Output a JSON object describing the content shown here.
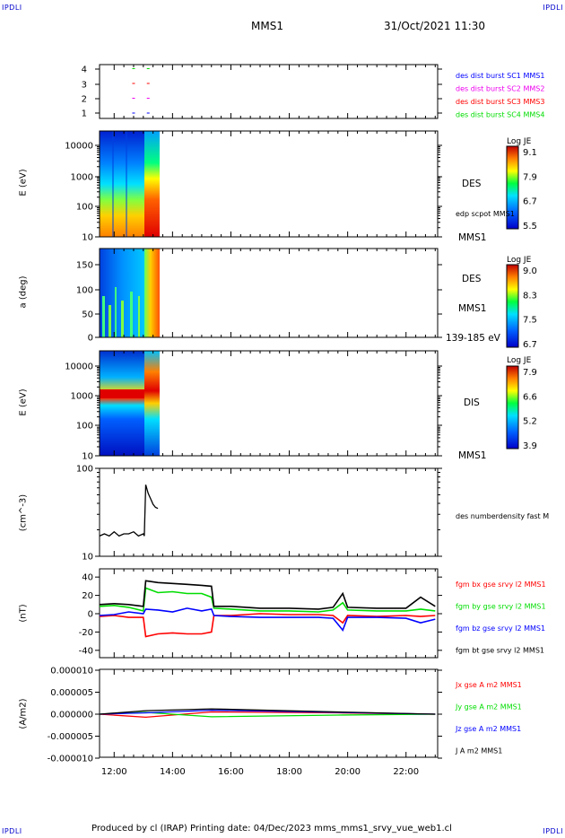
{
  "header": {
    "corner_tl": "IPDLI",
    "corner_tr": "IPDLI",
    "corner_bl": "IPDLI",
    "corner_br": "IPDLI",
    "spacecraft": "MMS1",
    "datetime": "31/Oct/2021 11:30"
  },
  "footer": {
    "text": "Produced by cl (IRAP)   Printing date: 04/Dec/2023   mms_mms1_srvy_vue_web1.cl"
  },
  "colors": {
    "red": "#ff0000",
    "green": "#00dd00",
    "blue": "#0000ff",
    "magenta": "#ee00ee",
    "black": "#000000"
  },
  "chart_data": [
    {
      "type": "scatter",
      "panel": "burst",
      "y_ticks": [
        "4",
        "3",
        "2",
        "1"
      ],
      "legend": [
        {
          "name": "des dist burst SC1 MMS1",
          "color": "#0000ff"
        },
        {
          "name": "des dist burst SC2 MMS2",
          "color": "#ee00ee"
        },
        {
          "name": "des dist burst SC3 MMS3",
          "color": "#ff0000"
        },
        {
          "name": "des dist burst SC4 MMS4",
          "color": "#00dd00"
        }
      ],
      "points": [
        {
          "x": "12:40",
          "y": 4,
          "color": "#00dd00"
        },
        {
          "x": "13:10",
          "y": 4,
          "color": "#00dd00"
        },
        {
          "x": "12:40",
          "y": 3,
          "color": "#ff0000"
        },
        {
          "x": "13:10",
          "y": 3,
          "color": "#ff0000"
        },
        {
          "x": "12:40",
          "y": 2,
          "color": "#ee00ee"
        },
        {
          "x": "13:10",
          "y": 2,
          "color": "#ee00ee"
        },
        {
          "x": "12:40",
          "y": 1,
          "color": "#0000ff"
        },
        {
          "x": "13:10",
          "y": 1,
          "color": "#0000ff"
        }
      ]
    },
    {
      "type": "heatmap",
      "panel": "des-energy",
      "ylabel": "E (eV)",
      "y_scale": "log",
      "y_ticks": [
        "10000",
        "1000",
        "100",
        "10"
      ],
      "right_labels": [
        "DES",
        "edp scpot MMS1",
        "MMS1"
      ],
      "colorbar": {
        "title": "Log JE",
        "ticks": [
          "9.1",
          "7.9",
          "6.7",
          "5.5"
        ]
      },
      "data_extent_x": [
        "11:30",
        "13:35"
      ]
    },
    {
      "type": "heatmap",
      "panel": "des-pitch",
      "ylabel": "a (deg)",
      "y_ticks": [
        "150",
        "100",
        "50",
        "0"
      ],
      "right_labels": [
        "DES",
        "MMS1",
        "139-185 eV"
      ],
      "colorbar": {
        "title": "Log JE",
        "ticks": [
          "9.0",
          "8.3",
          "7.5",
          "6.7"
        ]
      },
      "data_extent_x": [
        "11:30",
        "13:35"
      ]
    },
    {
      "type": "heatmap",
      "panel": "dis-energy",
      "ylabel": "E (eV)",
      "y_scale": "log",
      "y_ticks": [
        "10000",
        "1000",
        "100",
        "10"
      ],
      "right_labels": [
        "DIS",
        "MMS1"
      ],
      "colorbar": {
        "title": "Log JE",
        "ticks": [
          "7.9",
          "6.6",
          "5.2",
          "3.9"
        ]
      },
      "data_extent_x": [
        "11:30",
        "13:35"
      ]
    },
    {
      "type": "line",
      "panel": "density",
      "ylabel": "(cm^-3)",
      "y_scale": "log",
      "y_ticks": [
        "100",
        "10"
      ],
      "series": [
        {
          "name": "des numberdensity fast M",
          "color": "#000000",
          "x": [
            "11:30",
            "11:40",
            "11:50",
            "12:00",
            "12:10",
            "12:20",
            "12:30",
            "12:40",
            "12:50",
            "13:00",
            "13:02",
            "13:05",
            "13:10",
            "13:15",
            "13:20",
            "13:25",
            "13:30"
          ],
          "y": [
            17,
            18,
            17,
            19,
            17,
            18,
            18,
            19,
            17,
            18,
            17,
            65,
            52,
            45,
            39,
            36,
            35
          ]
        }
      ]
    },
    {
      "type": "line",
      "panel": "magnetic-field",
      "ylabel": "(nT)",
      "y_ticks": [
        "40",
        "20",
        "0",
        "-20",
        "-40"
      ],
      "ylim": [
        -48,
        48
      ],
      "series": [
        {
          "name": "fgm bx gse srvy l2 MMS1",
          "color": "#ff0000",
          "x": [
            "11:30",
            "12:00",
            "12:30",
            "13:00",
            "13:05",
            "13:30",
            "14:00",
            "14:30",
            "15:00",
            "15:20",
            "15:25",
            "16:00",
            "17:00",
            "18:00",
            "19:00",
            "19:30",
            "19:50",
            "20:00",
            "21:00",
            "22:00",
            "22:30",
            "23:00"
          ],
          "y": [
            -3,
            -2,
            -4,
            -4,
            -25,
            -22,
            -21,
            -22,
            -22,
            -20,
            -2,
            -2,
            0,
            -1,
            -1,
            -2,
            -10,
            -2,
            -3,
            -2,
            -3,
            -2
          ]
        },
        {
          "name": "fgm by gse srvy l2 MMS1",
          "color": "#00dd00",
          "x": [
            "11:30",
            "12:00",
            "12:30",
            "13:00",
            "13:05",
            "13:30",
            "14:00",
            "14:30",
            "15:00",
            "15:20",
            "15:25",
            "16:00",
            "17:00",
            "18:00",
            "19:00",
            "19:30",
            "19:50",
            "20:00",
            "21:00",
            "22:00",
            "22:30",
            "23:00"
          ],
          "y": [
            8,
            9,
            7,
            3,
            28,
            23,
            24,
            22,
            22,
            18,
            6,
            5,
            3,
            3,
            2,
            4,
            12,
            4,
            3,
            3,
            5,
            3
          ]
        },
        {
          "name": "fgm bz gse srvy l2 MMS1",
          "color": "#0000ff",
          "x": [
            "11:30",
            "12:00",
            "12:30",
            "13:00",
            "13:05",
            "13:30",
            "14:00",
            "14:30",
            "15:00",
            "15:20",
            "15:25",
            "16:00",
            "17:00",
            "18:00",
            "19:00",
            "19:30",
            "19:50",
            "20:00",
            "21:00",
            "22:00",
            "22:30",
            "23:00"
          ],
          "y": [
            -2,
            -1,
            2,
            0,
            5,
            4,
            2,
            6,
            3,
            5,
            -2,
            -3,
            -4,
            -4,
            -4,
            -5,
            -18,
            -4,
            -4,
            -5,
            -10,
            -6
          ]
        },
        {
          "name": "fgm bt gse srvy l2 MMS1",
          "color": "#000000",
          "x": [
            "11:30",
            "12:00",
            "12:30",
            "13:00",
            "13:05",
            "13:30",
            "14:00",
            "14:30",
            "15:00",
            "15:20",
            "15:25",
            "16:00",
            "17:00",
            "18:00",
            "19:00",
            "19:30",
            "19:50",
            "20:00",
            "21:00",
            "22:00",
            "22:30",
            "23:00"
          ],
          "y": [
            10,
            11,
            10,
            8,
            36,
            34,
            33,
            32,
            31,
            30,
            8,
            8,
            6,
            6,
            5,
            7,
            22,
            7,
            6,
            6,
            18,
            8
          ]
        }
      ]
    },
    {
      "type": "line",
      "panel": "current-density",
      "ylabel": "(A/m2)",
      "y_ticks": [
        "0.000010",
        "0.000005",
        "0.000000",
        "-0.000005",
        "-0.000010"
      ],
      "ylim": [
        -1e-05,
        1e-05
      ],
      "x_ticks": [
        "12:00",
        "14:00",
        "16:00",
        "18:00",
        "20:00",
        "22:00"
      ],
      "series": [
        {
          "name": "Jx gse A m2 MMS1",
          "color": "#ff0000",
          "x": [
            "11:30",
            "13:05",
            "15:20",
            "19:40",
            "23:00"
          ],
          "y": [
            0,
            -7e-07,
            5e-07,
            3e-07,
            0
          ]
        },
        {
          "name": "Jy gse A m2 MMS1",
          "color": "#00dd00",
          "x": [
            "11:30",
            "13:05",
            "15:20",
            "19:40",
            "23:00"
          ],
          "y": [
            0,
            4e-07,
            -6e-07,
            -2e-07,
            0
          ]
        },
        {
          "name": "Jz gse A m2 MMS1",
          "color": "#0000ff",
          "x": [
            "11:30",
            "13:05",
            "15:20",
            "19:40",
            "23:00"
          ],
          "y": [
            0,
            3e-07,
            9e-07,
            4e-07,
            0
          ]
        },
        {
          "name": "J A m2 MMS1",
          "color": "#000000",
          "x": [
            "11:30",
            "13:05",
            "15:20",
            "19:40",
            "23:00"
          ],
          "y": [
            0,
            8e-07,
            1.2e-06,
            5e-07,
            0
          ]
        }
      ]
    }
  ]
}
